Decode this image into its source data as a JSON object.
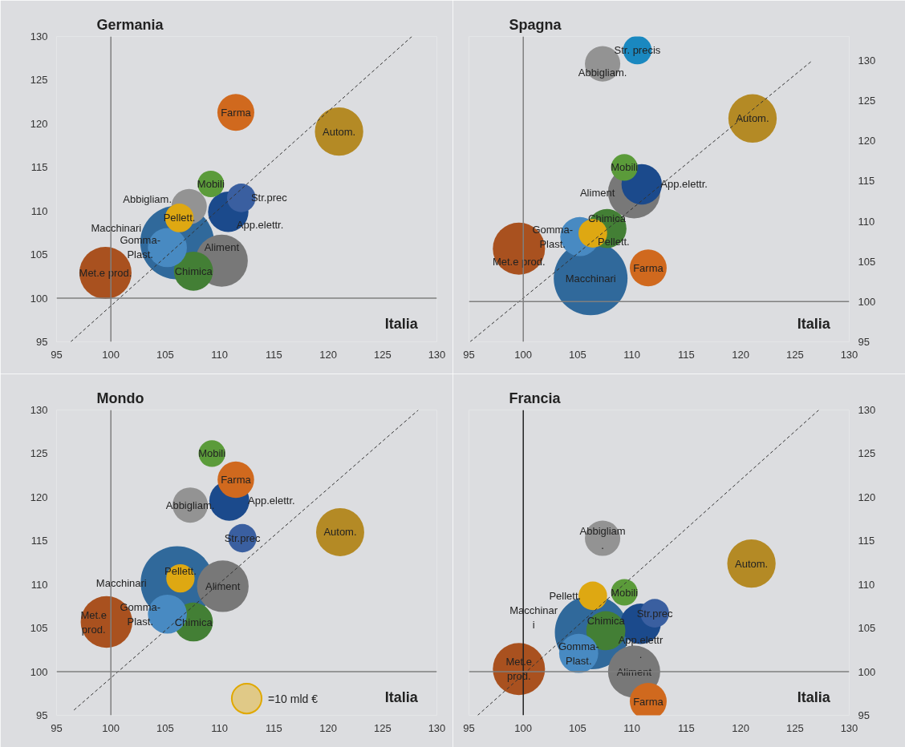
{
  "chart_data": [
    {
      "type": "bubble",
      "title": "Germania",
      "xlabel": "Italia",
      "xlim": [
        95,
        130
      ],
      "ylim": [
        95,
        130
      ],
      "xticks": [
        95,
        100,
        105,
        110,
        115,
        120,
        125,
        130
      ],
      "yticks": [
        95,
        100,
        105,
        110,
        115,
        120,
        125,
        130
      ],
      "ref_lines": [
        {
          "axis": "x",
          "value": 100,
          "color": "#7f7f7f"
        },
        {
          "axis": "y",
          "value": 100,
          "color": "#7f7f7f"
        }
      ],
      "series": [
        {
          "name": "Macchinari",
          "color": "#30699b",
          "x": [
            106.1
          ],
          "values": [
            106.4
          ],
          "sizes": [
            1
          ]
        },
        {
          "name": "Met.e prod.",
          "color": "#a9511f",
          "x": [
            99.5
          ],
          "values": [
            102.9
          ],
          "sizes": [
            0.5
          ]
        },
        {
          "name": "Aliment",
          "color": "#787878",
          "x": [
            110.2
          ],
          "values": [
            104.3
          ],
          "sizes": [
            0.5
          ]
        },
        {
          "name": "Autom.",
          "color": "#b48a25",
          "x": [
            121.0
          ],
          "values": [
            119.1
          ],
          "sizes": [
            0.43
          ]
        },
        {
          "name": "App.elettr.",
          "color": "#1b4a8c",
          "x": [
            110.8
          ],
          "values": [
            109.9
          ],
          "sizes": [
            0.3
          ]
        },
        {
          "name": "Chimica",
          "color": "#437f35",
          "x": [
            107.6
          ],
          "values": [
            103.1
          ],
          "sizes": [
            0.28
          ]
        },
        {
          "name": "Gomma-\nPlast.",
          "color": "#488ac2",
          "x": [
            105.2
          ],
          "values": [
            105.8
          ],
          "sizes": [
            0.28
          ]
        },
        {
          "name": "Abbigliam.",
          "color": "#939393",
          "x": [
            107.2
          ],
          "values": [
            110.5
          ],
          "sizes": [
            0.23
          ]
        },
        {
          "name": "Farma",
          "color": "#d0691e",
          "x": [
            111.5
          ],
          "values": [
            121.3
          ],
          "sizes": [
            0.25
          ]
        },
        {
          "name": "Mobili",
          "color": "#5b9b3a",
          "x": [
            109.2
          ],
          "values": [
            113.1
          ],
          "sizes": [
            0.13
          ]
        },
        {
          "name": "Str.prec",
          "color": "#3a5fa0",
          "x": [
            112.0
          ],
          "values": [
            111.5
          ],
          "sizes": [
            0.15
          ]
        },
        {
          "name": "Pellett.",
          "color": "#dea812",
          "x": [
            106.3
          ],
          "values": [
            109.2
          ],
          "sizes": [
            0.15
          ]
        },
        {
          "type": "line",
          "color": "#333333",
          "line_style": "dashed",
          "x": [
            96.3,
            127.7
          ],
          "values": [
            95,
            130
          ]
        }
      ]
    },
    {
      "type": "bubble",
      "title": "Spagna",
      "xlabel": "Italia",
      "xlim": [
        95,
        130
      ],
      "ylim": [
        95,
        133
      ],
      "xticks": [
        95,
        100,
        105,
        110,
        115,
        120,
        125,
        130
      ],
      "yticks": [
        95,
        100,
        105,
        110,
        115,
        120,
        125,
        130
      ],
      "ref_lines": [
        {
          "axis": "x",
          "value": 100,
          "color": "#7f7f7f"
        },
        {
          "axis": "y",
          "value": 100,
          "color": "#7f7f7f"
        }
      ],
      "series": [
        {
          "name": "Macchinari",
          "color": "#30699b",
          "x": [
            106.2
          ],
          "values": [
            102.9
          ],
          "sizes": [
            1
          ]
        },
        {
          "name": "Met.e prod.",
          "color": "#a9511f",
          "x": [
            99.6
          ],
          "values": [
            106.6
          ],
          "sizes": [
            0.5
          ]
        },
        {
          "name": "Aliment",
          "color": "#787878",
          "x": [
            110.2
          ],
          "values": [
            113.6
          ],
          "sizes": [
            0.5
          ]
        },
        {
          "name": "Autom.",
          "color": "#b48a25",
          "x": [
            121.1
          ],
          "values": [
            122.8
          ],
          "sizes": [
            0.43
          ]
        },
        {
          "name": "App.elettr.",
          "color": "#1b4a8c",
          "x": [
            110.9
          ],
          "values": [
            114.6
          ],
          "sizes": [
            0.3
          ]
        },
        {
          "name": "Chimica",
          "color": "#437f35",
          "x": [
            107.7
          ],
          "values": [
            109.1
          ],
          "sizes": [
            0.28
          ]
        },
        {
          "name": "Gomma-\nPlast.",
          "color": "#488ac2",
          "x": [
            105.2
          ],
          "values": [
            108.1
          ],
          "sizes": [
            0.28
          ]
        },
        {
          "name": "Abbigliam.",
          "color": "#939393",
          "x": [
            107.3
          ],
          "values": [
            129.6
          ],
          "sizes": [
            0.23
          ]
        },
        {
          "name": "Farma",
          "color": "#d0691e",
          "x": [
            111.5
          ],
          "values": [
            104.2
          ],
          "sizes": [
            0.25
          ]
        },
        {
          "name": "Mobili",
          "color": "#5b9b3a",
          "x": [
            109.3
          ],
          "values": [
            116.7
          ],
          "sizes": [
            0.13
          ]
        },
        {
          "name": "Str. precis",
          "color": "#1a88c0",
          "x": [
            110.5
          ],
          "values": [
            131.3
          ],
          "sizes": [
            0.15
          ]
        },
        {
          "name": "Pellett.",
          "color": "#dea812",
          "x": [
            106.4
          ],
          "values": [
            108.5
          ],
          "sizes": [
            0.15
          ]
        },
        {
          "type": "line",
          "color": "#333333",
          "line_style": "dashed",
          "x": [
            95.1,
            126.6
          ],
          "values": [
            95,
            130
          ]
        }
      ]
    },
    {
      "type": "bubble",
      "title": "Mondo",
      "xlabel": "Italia",
      "xlim": [
        95,
        130
      ],
      "ylim": [
        95,
        130
      ],
      "xticks": [
        95,
        100,
        105,
        110,
        115,
        120,
        125,
        130
      ],
      "yticks": [
        95,
        100,
        105,
        110,
        115,
        120,
        125,
        130
      ],
      "size_legend": [
        {
          "value": 10,
          "label": "=10 mld €"
        }
      ],
      "ref_lines": [
        {
          "axis": "x",
          "value": 100,
          "color": "#7f7f7f"
        },
        {
          "axis": "y",
          "value": 100,
          "color": "#7f7f7f"
        }
      ],
      "series": [
        {
          "name": "Macchinari",
          "color": "#30699b",
          "x": [
            106.1
          ],
          "values": [
            110.2
          ],
          "sizes": [
            60
          ]
        },
        {
          "name": "Met.e\nprod.",
          "color": "#a9511f",
          "x": [
            99.6
          ],
          "values": [
            105.7
          ],
          "sizes": [
            30
          ]
        },
        {
          "name": "Aliment",
          "color": "#787878",
          "x": [
            110.3
          ],
          "values": [
            109.8
          ],
          "sizes": [
            30
          ]
        },
        {
          "name": "Autom.",
          "color": "#b48a25",
          "x": [
            121.1
          ],
          "values": [
            116.0
          ],
          "sizes": [
            26
          ]
        },
        {
          "name": "App.elettr.",
          "color": "#1b4a8c",
          "x": [
            110.9
          ],
          "values": [
            119.6
          ],
          "sizes": [
            18
          ]
        },
        {
          "name": "Chimica",
          "color": "#437f35",
          "x": [
            107.6
          ],
          "values": [
            105.7
          ],
          "sizes": [
            17
          ]
        },
        {
          "name": "Gomma-\nPlast.",
          "color": "#488ac2",
          "x": [
            105.2
          ],
          "values": [
            106.6
          ],
          "sizes": [
            17
          ]
        },
        {
          "name": "Abbigliam.",
          "color": "#939393",
          "x": [
            107.3
          ],
          "values": [
            119.1
          ],
          "sizes": [
            14
          ]
        },
        {
          "name": "Farma",
          "color": "#d0691e",
          "x": [
            111.5
          ],
          "values": [
            122.0
          ],
          "sizes": [
            15
          ]
        },
        {
          "name": "Mobili",
          "color": "#5b9b3a",
          "x": [
            109.3
          ],
          "values": [
            125.0
          ],
          "sizes": [
            8
          ]
        },
        {
          "name": "Str.prec",
          "color": "#3a5fa0",
          "x": [
            112.1
          ],
          "values": [
            115.3
          ],
          "sizes": [
            9
          ]
        },
        {
          "name": "Pellett.",
          "color": "#dea812",
          "x": [
            106.4
          ],
          "values": [
            110.7
          ],
          "sizes": [
            9
          ]
        },
        {
          "type": "line",
          "color": "#333333",
          "line_style": "dashed",
          "x": [
            96.6,
            128.3
          ],
          "values": [
            95.6,
            130.0
          ]
        }
      ]
    },
    {
      "type": "bubble",
      "title": "Francia",
      "xlabel": "Italia",
      "xlim": [
        95,
        130
      ],
      "ylim": [
        95,
        130
      ],
      "xticks": [
        95,
        100,
        105,
        110,
        115,
        120,
        125,
        130
      ],
      "yticks": [
        95,
        100,
        105,
        110,
        115,
        120,
        125,
        130
      ],
      "ref_lines": [
        {
          "axis": "x",
          "value": 100,
          "color": "#222222"
        },
        {
          "axis": "y",
          "value": 100,
          "color": "#7f7f7f"
        }
      ],
      "series": [
        {
          "name": "Macchinar\ni",
          "color": "#30699b",
          "x": [
            106.3
          ],
          "values": [
            104.5
          ],
          "sizes": [
            1
          ]
        },
        {
          "name": "Met.e\nprod.",
          "color": "#a9511f",
          "x": [
            99.6
          ],
          "values": [
            100.3
          ],
          "sizes": [
            0.5
          ]
        },
        {
          "name": "Aliment",
          "color": "#787878",
          "x": [
            110.2
          ],
          "values": [
            100.0
          ],
          "sizes": [
            0.5
          ]
        },
        {
          "name": "Autom.",
          "color": "#b48a25",
          "x": [
            121.0
          ],
          "values": [
            112.4
          ],
          "sizes": [
            0.43
          ]
        },
        {
          "name": "App.elettr\n.",
          "color": "#1b4a8c",
          "x": [
            110.8
          ],
          "values": [
            105.5
          ],
          "sizes": [
            0.3
          ]
        },
        {
          "name": "Chimica",
          "color": "#437f35",
          "x": [
            107.6
          ],
          "values": [
            104.7
          ],
          "sizes": [
            0.28
          ]
        },
        {
          "name": "Gomma-\nPlast.",
          "color": "#488ac2",
          "x": [
            105.1
          ],
          "values": [
            102.1
          ],
          "sizes": [
            0.28
          ]
        },
        {
          "name": "Abbigliam\n.",
          "color": "#939393",
          "x": [
            107.3
          ],
          "values": [
            115.3
          ],
          "sizes": [
            0.23
          ]
        },
        {
          "name": "Farma",
          "color": "#d0691e",
          "x": [
            111.5
          ],
          "values": [
            96.6
          ],
          "sizes": [
            0.25
          ]
        },
        {
          "name": "Mobili",
          "color": "#5b9b3a",
          "x": [
            109.3
          ],
          "values": [
            109.1
          ],
          "sizes": [
            0.13
          ]
        },
        {
          "name": "Str.prec",
          "color": "#3a5fa0",
          "x": [
            112.1
          ],
          "values": [
            106.7
          ],
          "sizes": [
            0.15
          ]
        },
        {
          "name": "Pellett.",
          "color": "#dea812",
          "x": [
            106.4
          ],
          "values": [
            108.7
          ],
          "sizes": [
            0.15
          ]
        },
        {
          "type": "line",
          "color": "#333333",
          "line_style": "dashed",
          "x": [
            95.8,
            127.2
          ],
          "values": [
            95,
            130
          ]
        }
      ]
    }
  ]
}
